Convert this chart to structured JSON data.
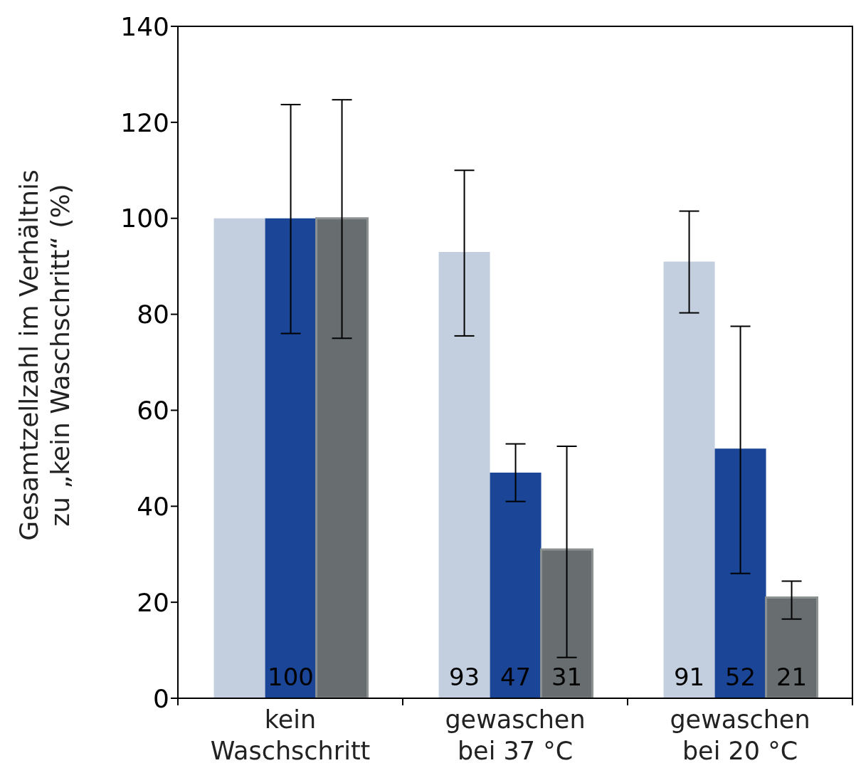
{
  "chart_data": {
    "type": "bar",
    "ylabel": "Gesamtzellzahl im Verhältnis\nzu „kein Waschschritt“ (%)",
    "categories": [
      "kein\nWaschschritt",
      "gewaschen\nbei 37 °C",
      "gewaschen\nbei 20 °C"
    ],
    "series": [
      {
        "color": "#c3cfdf",
        "values": [
          100,
          93,
          91
        ],
        "errors": [
          0,
          [
            75.5,
            110
          ],
          [
            80.3,
            101.5
          ]
        ],
        "value_labels": [
          null,
          "93",
          "91"
        ]
      },
      {
        "color": "#1b4698",
        "values": [
          100,
          47,
          52
        ],
        "errors": [
          [
            76,
            123.7
          ],
          [
            41,
            53
          ],
          [
            26,
            77.5
          ]
        ],
        "value_labels": [
          "100",
          "47",
          "52"
        ]
      },
      {
        "color": "#686e6f",
        "values": [
          100,
          31,
          21
        ],
        "errors": [
          [
            75,
            124.7
          ],
          [
            8.5,
            52.5
          ],
          [
            16.5,
            24.4
          ]
        ],
        "value_labels": [
          null,
          "31",
          "21"
        ]
      }
    ],
    "ylim": [
      0,
      140
    ],
    "yticks": [
      0,
      20,
      40,
      60,
      80,
      100,
      120,
      140
    ],
    "grid": false,
    "legend": false
  }
}
